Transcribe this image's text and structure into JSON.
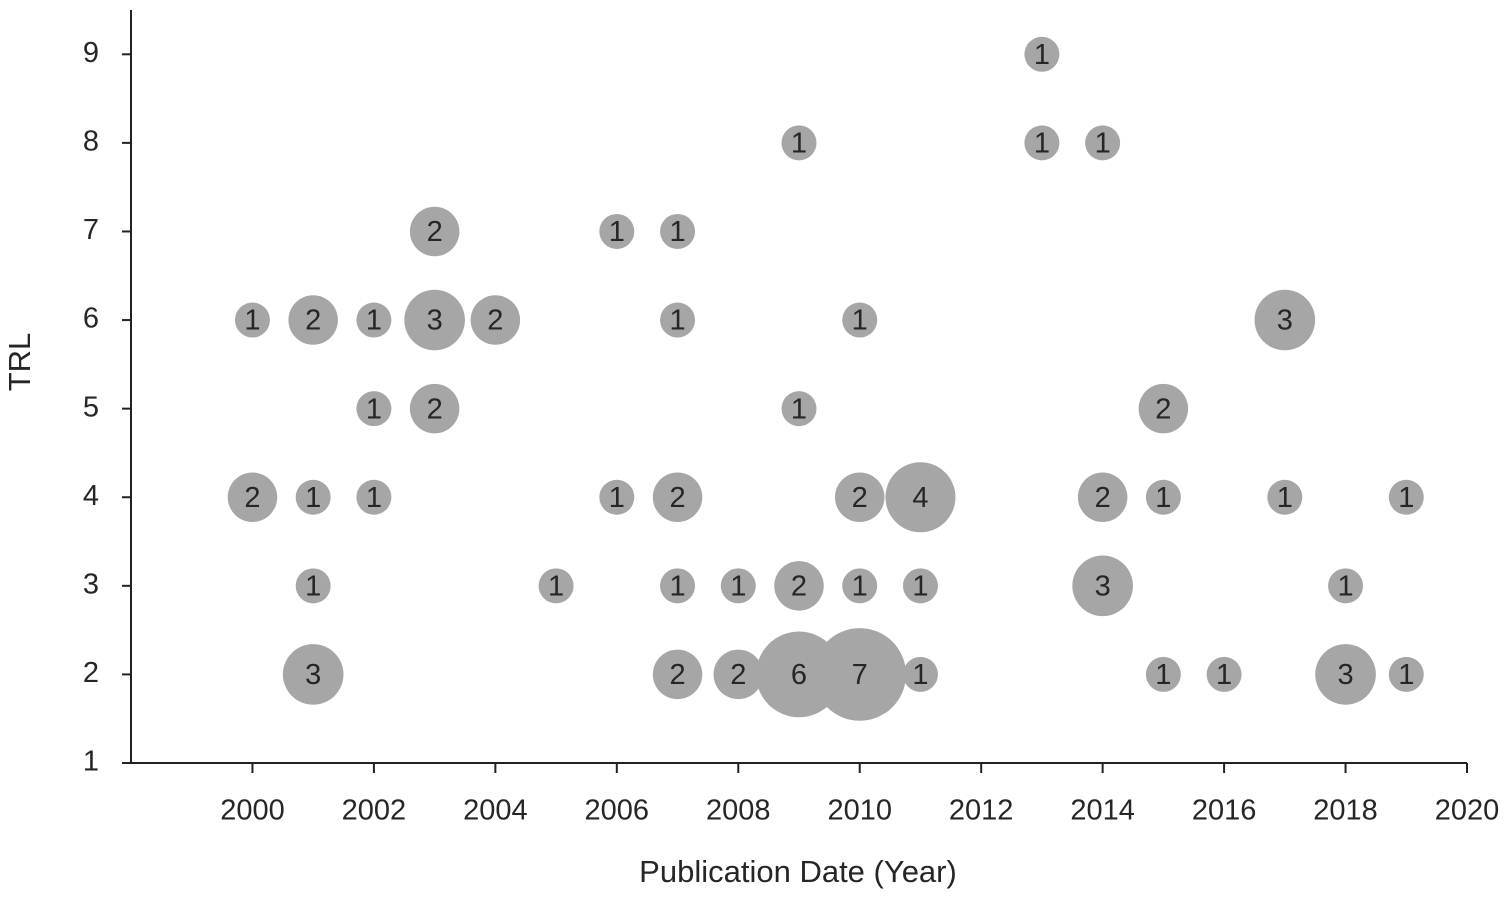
{
  "chart_data": {
    "type": "bubble",
    "x_label": "Publication Date (Year)",
    "y_label": "TRL",
    "xlim": [
      1998,
      2020
    ],
    "xticks": [
      2000,
      2002,
      2004,
      2006,
      2008,
      2010,
      2012,
      2014,
      2016,
      2018,
      2020
    ],
    "ylim": [
      1,
      9.5
    ],
    "yticks": [
      1,
      2,
      3,
      4,
      5,
      6,
      7,
      8,
      9
    ],
    "color": "#a6a6a6",
    "series": [
      {
        "x": [
          2013,
          2009,
          2013,
          2014,
          2003,
          2006,
          2007,
          2000,
          2001,
          2002,
          2003,
          2004,
          2007,
          2010,
          2017,
          2002,
          2003,
          2009,
          2015,
          2000,
          2001,
          2002,
          2006,
          2007,
          2010,
          2011,
          2014,
          2015,
          2017,
          2019,
          2001,
          2005,
          2007,
          2008,
          2009,
          2010,
          2011,
          2014,
          2018,
          2001,
          2007,
          2008,
          2009,
          2010,
          2011,
          2015,
          2016,
          2018,
          2019
        ],
        "values": [
          9,
          8,
          8,
          8,
          7,
          7,
          7,
          6,
          6,
          6,
          6,
          6,
          6,
          6,
          6,
          5,
          5,
          5,
          5,
          4,
          4,
          4,
          4,
          4,
          4,
          4,
          4,
          4,
          4,
          4,
          3,
          3,
          3,
          3,
          3,
          3,
          3,
          3,
          3,
          2,
          2,
          2,
          2,
          2,
          2,
          2,
          2,
          2,
          2
        ],
        "sizes": [
          1,
          1,
          1,
          1,
          2,
          1,
          1,
          1,
          2,
          1,
          3,
          2,
          1,
          1,
          3,
          1,
          2,
          1,
          2,
          2,
          1,
          1,
          1,
          2,
          2,
          4,
          2,
          1,
          1,
          1,
          1,
          1,
          1,
          1,
          2,
          1,
          1,
          3,
          1,
          3,
          2,
          2,
          6,
          7,
          1,
          1,
          1,
          3,
          1
        ]
      }
    ]
  }
}
